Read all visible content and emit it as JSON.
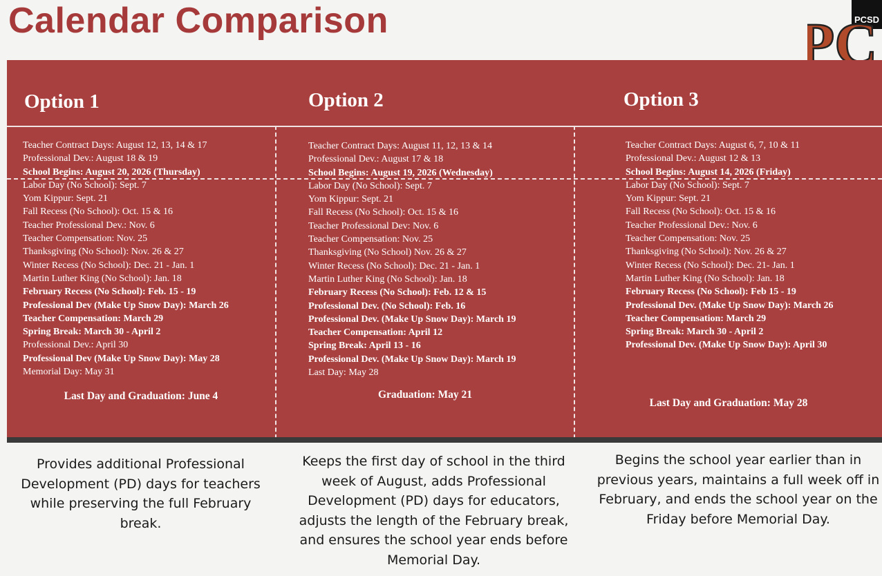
{
  "title": "Calendar Comparison",
  "logo": {
    "letters": "PC",
    "badge": "PCSD"
  },
  "options": [
    {
      "heading": "Option 1",
      "items": [
        {
          "text": "Teacher Contract Days: August 12, 13, 14 & 17",
          "bold": false
        },
        {
          "text": "Professional Dev.: August 18 & 19",
          "bold": false
        },
        {
          "text": "School Begins: August 20, 2026 (Thursday)",
          "bold": true
        },
        {
          "text": "Labor Day (No School): Sept. 7",
          "bold": false
        },
        {
          "text": "Yom Kippur: Sept. 21",
          "bold": false
        },
        {
          "text": "Fall Recess (No School): Oct. 15 & 16",
          "bold": false
        },
        {
          "text": "Teacher Professional Dev.: Nov. 6",
          "bold": false
        },
        {
          "text": "Teacher Compensation: Nov. 25",
          "bold": false
        },
        {
          "text": "Thanksgiving (No School): Nov. 26 & 27",
          "bold": false
        },
        {
          "text": "Winter Recess (No School): Dec. 21 - Jan. 1",
          "bold": false
        },
        {
          "text": "Martin Luther King (No School): Jan. 18",
          "bold": false
        },
        {
          "text": "February Recess (No School): Feb. 15 - 19",
          "bold": true
        },
        {
          "text": "Professional Dev (Make Up Snow Day): March 26",
          "bold": true
        },
        {
          "text": "Teacher Compensation: March 29",
          "bold": true
        },
        {
          "text": "Spring Break: March 30 - April 2",
          "bold": true
        },
        {
          "text": "Professional Dev.: April 30",
          "bold": false
        },
        {
          "text": "Professional Dev (Make Up Snow Day): May 28",
          "bold": true
        },
        {
          "text": "Memorial Day: May 31",
          "bold": false
        }
      ],
      "closing": "Last Day and Graduation: June 4",
      "description": "Provides additional Professional Development (PD) days for teachers while preserving the full February break."
    },
    {
      "heading": "Option 2",
      "items": [
        {
          "text": "Teacher Contract Days: August 11, 12, 13 & 14",
          "bold": false
        },
        {
          "text": "Professional Dev.: August 17 & 18",
          "bold": false
        },
        {
          "text": "School Begins: August 19, 2026 (Wednesday)",
          "bold": true
        },
        {
          "text": "Labor Day (No School): Sept. 7",
          "bold": false
        },
        {
          "text": "Yom Kippur: Sept. 21",
          "bold": false
        },
        {
          "text": "Fall Recess (No School): Oct. 15 & 16",
          "bold": false
        },
        {
          "text": "Teacher Professional Dev: Nov. 6",
          "bold": false
        },
        {
          "text": "Teacher Compensation: Nov. 25",
          "bold": false
        },
        {
          "text": "Thanksgiving (No School) Nov. 26 & 27",
          "bold": false
        },
        {
          "text": "Winter Recess (No School): Dec. 21 - Jan. 1",
          "bold": false
        },
        {
          "text": "Martin Luther King (No School): Jan. 18",
          "bold": false
        },
        {
          "text": "February Recess (No School): Feb. 12 & 15",
          "bold": true
        },
        {
          "text": "Professional Dev. (No School): Feb. 16",
          "bold": true
        },
        {
          "text": "Professional Dev. (Make Up Snow Day): March 19",
          "bold": true
        },
        {
          "text": "Teacher Compensation: April 12",
          "bold": true
        },
        {
          "text": "Spring Break: April 13 - 16",
          "bold": true
        },
        {
          "text": "Professional Dev. (Make Up Snow Day): March 19",
          "bold": true
        },
        {
          "text": "Last Day: May 28",
          "bold": false
        }
      ],
      "closing": "Graduation: May 21",
      "description": "Keeps the first day of school in the third week of August, adds Professional Development (PD) days for educators, adjusts the length of the February break, and ensures the school year ends before Memorial Day."
    },
    {
      "heading": "Option 3",
      "items": [
        {
          "text": "Teacher Contract Days: August 6, 7, 10 & 11",
          "bold": false
        },
        {
          "text": "Professional Dev.: August 12 & 13",
          "bold": false
        },
        {
          "text": "School Begins: August 14, 2026 (Friday)",
          "bold": true
        },
        {
          "text": "Labor Day (No School): Sept. 7",
          "bold": false
        },
        {
          "text": "Yom Kippur: Sept. 21",
          "bold": false
        },
        {
          "text": "Fall Recess (No School): Oct. 15 & 16",
          "bold": false
        },
        {
          "text": "Teacher Professional Dev.: Nov. 6",
          "bold": false
        },
        {
          "text": "Teacher Compensation: Nov. 25",
          "bold": false
        },
        {
          "text": "Thanksgiving (No School): Nov. 26 & 27",
          "bold": false
        },
        {
          "text": "Winter Recess (No School): Dec. 21- Jan. 1",
          "bold": false
        },
        {
          "text": "Martin Luther King (No School): Jan. 18",
          "bold": false
        },
        {
          "text": "February Recess (No School): Feb 15 - 19",
          "bold": true
        },
        {
          "text": "Professional Dev. (Make Up Snow Day): March 26",
          "bold": true
        },
        {
          "text": "Teacher Compensation: March 29",
          "bold": true
        },
        {
          "text": "Spring Break: March 30 - April 2",
          "bold": true
        },
        {
          "text": "Professional Dev. (Make Up Snow Day): April 30",
          "bold": true
        }
      ],
      "closing": "Last Day and Graduation: May 28",
      "description": "Begins the school year earlier than in previous years, maintains a full week off in February, and ends the school year on the Friday before Memorial Day."
    }
  ]
}
